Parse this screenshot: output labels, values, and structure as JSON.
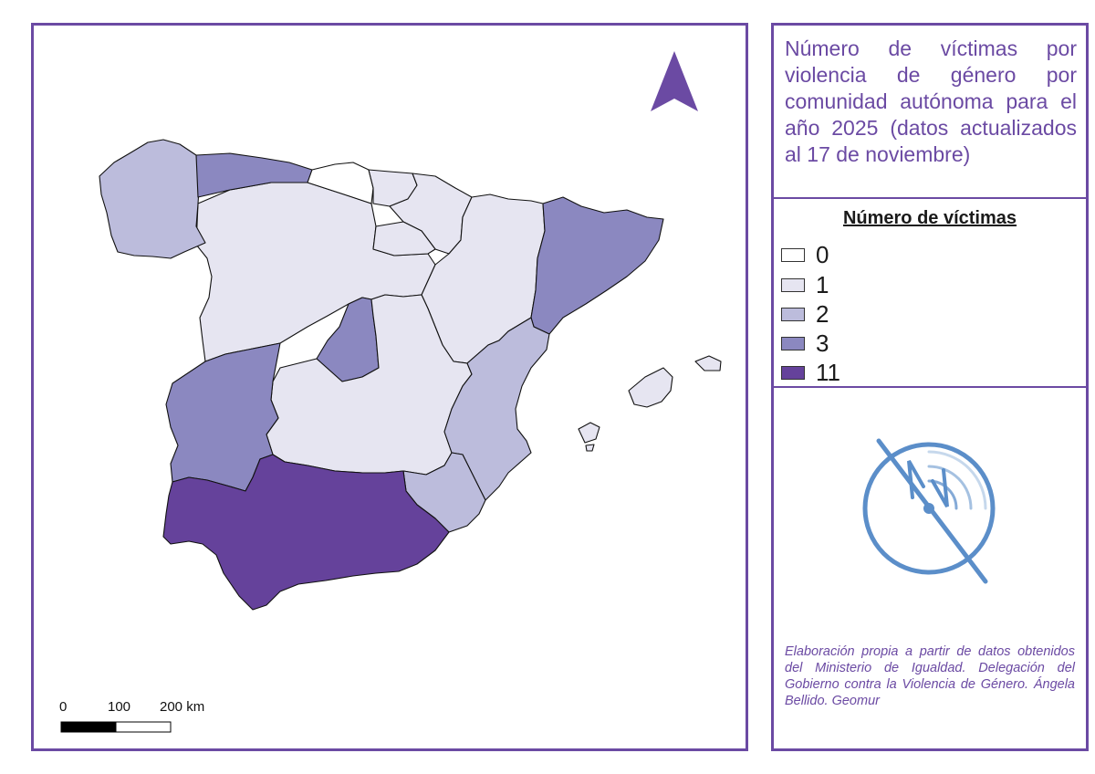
{
  "title": "Número de víctimas por violencia de género por comunidad autónoma para el año 2025 (datos actualizados al 17 de noviembre)",
  "legend": {
    "title": "Número de víctimas",
    "items": [
      {
        "label": "0",
        "color": "#ffffff"
      },
      {
        "label": "1",
        "color": "#e6e5f1"
      },
      {
        "label": "2",
        "color": "#bcbcdc"
      },
      {
        "label": "3",
        "color": "#8b88c0"
      },
      {
        "label": "11",
        "color": "#65429b"
      }
    ]
  },
  "scale_bar": {
    "labels": [
      "0",
      "100",
      "200 km"
    ]
  },
  "credits": "Elaboración propia a partir de datos obtenidos del Ministerio de Igualdad. Delegación del Gobierno contra la Violencia de Género. Ángela Bellido. Geomur",
  "regions": [
    {
      "name": "Galicia",
      "value": 2
    },
    {
      "name": "Asturias",
      "value": 3
    },
    {
      "name": "Cantabria",
      "value": 0
    },
    {
      "name": "País Vasco",
      "value": 1
    },
    {
      "name": "Navarra",
      "value": 1
    },
    {
      "name": "La Rioja",
      "value": 1
    },
    {
      "name": "Aragón",
      "value": 1
    },
    {
      "name": "Cataluña",
      "value": 3
    },
    {
      "name": "Castilla y León",
      "value": 1
    },
    {
      "name": "Madrid",
      "value": 3
    },
    {
      "name": "Castilla-La Mancha",
      "value": 1
    },
    {
      "name": "Extremadura",
      "value": 3
    },
    {
      "name": "Comunidad Valenciana",
      "value": 2
    },
    {
      "name": "Murcia",
      "value": 2
    },
    {
      "name": "Andalucía",
      "value": 11
    },
    {
      "name": "Islas Baleares",
      "value": 1
    }
  ],
  "colors": {
    "frame": "#6b4aa3",
    "north_arrow": "#6b4aa3",
    "logo": "#5b8ec9"
  },
  "icons": {
    "north_arrow": "north-arrow-icon",
    "logo": "government-logo-icon"
  }
}
